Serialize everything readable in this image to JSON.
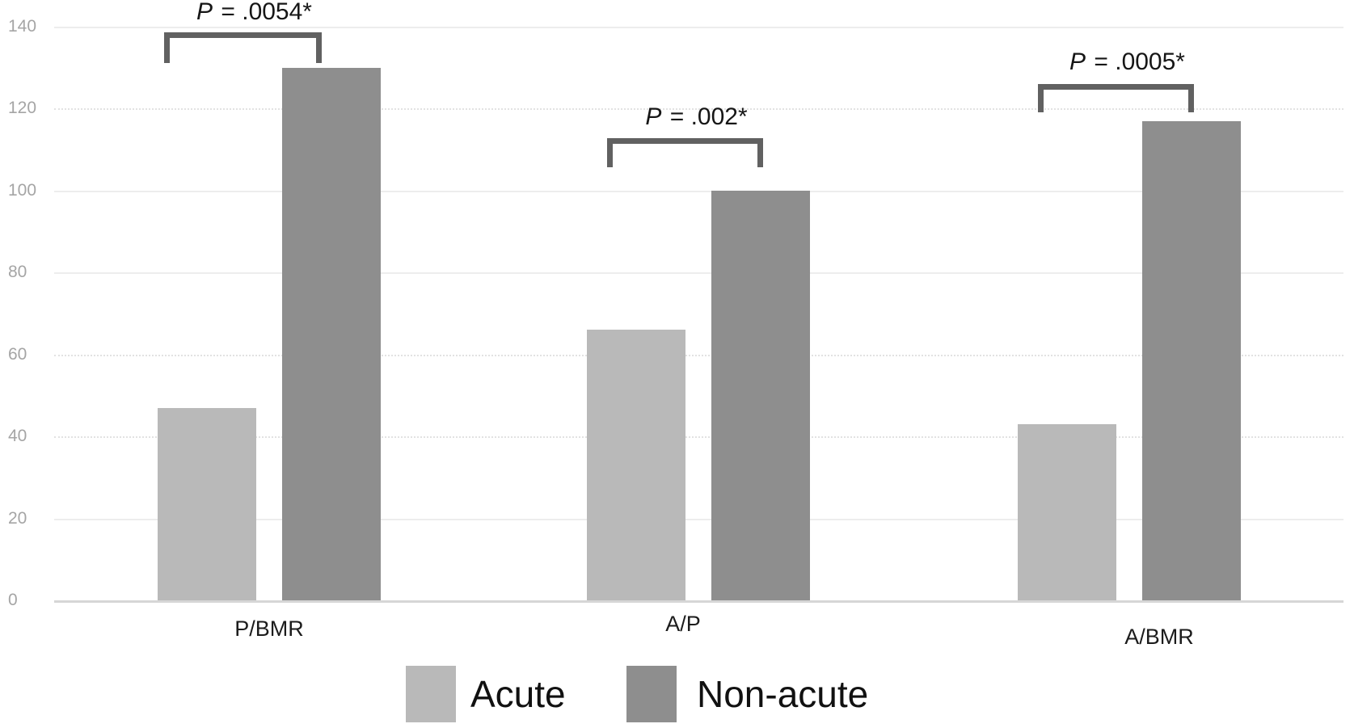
{
  "chart_data": {
    "type": "bar",
    "title": "",
    "xlabel": "",
    "ylabel": "",
    "categories": [
      "P/BMR",
      "A/P",
      "A/BMR"
    ],
    "series": [
      {
        "name": "Acute",
        "color": "#b9b9b9",
        "values": [
          47,
          66,
          43
        ]
      },
      {
        "name": "Non-acute",
        "color": "#8e8e8e",
        "values": [
          130,
          100,
          117
        ]
      }
    ],
    "annotations": [
      {
        "label": "P = .0054*",
        "category": "P/BMR"
      },
      {
        "label": "P = .002*",
        "category": "A/P"
      },
      {
        "label": "P = .0005*",
        "category": "A/BMR"
      }
    ],
    "ylim": [
      0,
      140
    ],
    "yticks": [
      0,
      20,
      40,
      60,
      80,
      100,
      120,
      140
    ],
    "grid": true,
    "gridline_dotted_at": [
      40,
      60,
      120
    ],
    "legend_position": "bottom",
    "legend": [
      "Acute",
      "Non-acute"
    ],
    "colors": {
      "acute": "#b9b9b9",
      "non_acute": "#8e8e8e",
      "bracket": "#616161",
      "axis_text": "#a5a5a5",
      "label_text": "#1c1c1c"
    }
  }
}
